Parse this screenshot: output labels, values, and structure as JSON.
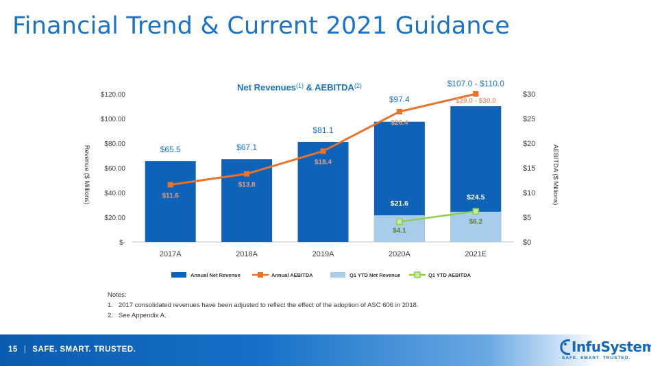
{
  "page": {
    "title": "Financial Trend & Current 2021 Guidance",
    "page_number": "15",
    "tagline": "SAFE. SMART. TRUSTED.",
    "logo_name": "InfuSystem",
    "logo_tag": "SAFE. SMART. TRUSTED.",
    "notes_heading": "Notes:",
    "notes": [
      {
        "num": "1.",
        "text": "2017 consolidated revenues have been adjusted to reflect the effect of the adoption of ASC 606 in 2018."
      },
      {
        "num": "2.",
        "text": "See Appendix A."
      }
    ]
  },
  "chart_data": {
    "type": "bar",
    "title_main": "Net Revenues",
    "title_sup1": "(1)",
    "title_mid": " & AEBITDA",
    "title_sup2": "(2)",
    "categories": [
      "2017A",
      "2018A",
      "2019A",
      "2020A",
      "2021E"
    ],
    "ylabel_left": "Revenue ($ Millions)",
    "ylabel_right": "AEBITDA ($ Millions)",
    "y_left": {
      "min": 0,
      "max": 120,
      "step": 20,
      "tick_labels": [
        "$-",
        "$20.00",
        "$40.00",
        "$60.00",
        "$80.00",
        "$100.00",
        "$120.00"
      ]
    },
    "y_right": {
      "min": 0,
      "max": 30,
      "step": 5,
      "tick_labels": [
        "$0",
        "$5",
        "$10",
        "$15",
        "$20",
        "$25",
        "$30"
      ]
    },
    "series": [
      {
        "name": "Annual Net Revenue",
        "kind": "bar",
        "axis": "left",
        "color": "#0e62b8",
        "values": [
          65.5,
          67.1,
          81.1,
          97.4,
          110.0
        ],
        "labels": [
          "$65.5",
          "$67.1",
          "$81.1",
          "$97.4",
          "$107.0 - $110.0"
        ]
      },
      {
        "name": "Annual AEBITDA",
        "kind": "line",
        "axis": "right",
        "color": "#e8732a",
        "values": [
          11.6,
          13.8,
          18.4,
          26.4,
          30.0
        ],
        "labels": [
          "$11.6",
          "$13.8",
          "$18.4",
          "$26.4",
          "$29.0 - $30.0"
        ]
      },
      {
        "name": "Q1 YTD Net Revenue",
        "kind": "bar",
        "axis": "left",
        "color": "#a8cdec",
        "values": [
          null,
          null,
          null,
          21.6,
          24.5
        ],
        "labels": [
          "",
          "",
          "",
          "$21.6",
          "$24.5"
        ]
      },
      {
        "name": "Q1 YTD AEBITDA",
        "kind": "line",
        "axis": "right",
        "color": "#8ccf4d",
        "values": [
          null,
          null,
          null,
          4.1,
          6.2
        ],
        "labels": [
          "",
          "",
          "",
          "$4.1",
          "$6.2"
        ]
      }
    ],
    "legend": [
      "Annual Net Revenue",
      "Annual AEBITDA",
      "Q1 YTD Net Revenue",
      "Q1 YTD AEBITDA"
    ]
  }
}
